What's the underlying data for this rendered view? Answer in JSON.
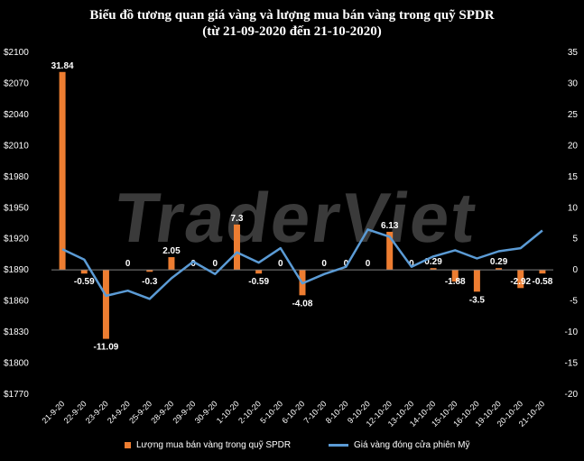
{
  "title_line1": "Biểu đồ tương quan giá vàng và lượng mua bán vàng trong quỹ SPDR",
  "title_line2": "(từ 21-09-2020 đến 21-10-2020)",
  "watermark": "TraderViet",
  "colors": {
    "bar": "#ED7D31",
    "line": "#5B9BD5",
    "axis_text": "#ffffff",
    "background": "#000000"
  },
  "chart_data": {
    "type": "bar+line",
    "categories": [
      "21-9-20",
      "22-9-20",
      "23-9-20",
      "24-9-20",
      "25-9-20",
      "28-9-20",
      "29-9-20",
      "30-9-20",
      "1-10-20",
      "2-10-20",
      "5-10-20",
      "6-10-20",
      "7-10-20",
      "8-10-20",
      "9-10-20",
      "12-10-20",
      "13-10-20",
      "14-10-20",
      "15-10-20",
      "16-10-20",
      "19-10-20",
      "20-10-20",
      "21-10-20"
    ],
    "series": [
      {
        "name": "Lượng mua bán vàng trong quỹ  SPDR",
        "type": "bar",
        "axis": "right",
        "values": [
          31.84,
          -0.59,
          -11.09,
          0,
          -0.3,
          2.05,
          0,
          0,
          7.3,
          -0.59,
          0,
          -4.08,
          0,
          0,
          0,
          6.13,
          0,
          0.29,
          -1.88,
          -3.5,
          0.29,
          -2.92,
          -0.58
        ],
        "labels": [
          "31.84",
          "-0.59",
          "-11.09",
          "0",
          "-0.3",
          "2.05",
          "0",
          "0",
          "7.3",
          "-0.59",
          "0",
          "-4.08",
          "0",
          "0",
          "0",
          "6.13",
          "0",
          "0.29",
          "-1.88",
          "-3.5",
          "0.29",
          "-2.92",
          "-0.58"
        ]
      },
      {
        "name": "Giá vàng đóng cửa phiên Mỹ",
        "type": "line",
        "axis": "left",
        "values": [
          1910,
          1900,
          1865,
          1870,
          1862,
          1882,
          1898,
          1886,
          1907,
          1897,
          1911,
          1877,
          1886,
          1893,
          1929,
          1922,
          1893,
          1903,
          1909,
          1901,
          1908,
          1911,
          1928
        ]
      }
    ],
    "y_left": {
      "min": 1770,
      "max": 2100,
      "step": 30,
      "tick_labels": [
        "$1770",
        "$1800",
        "$1830",
        "$1860",
        "$1890",
        "$1920",
        "$1950",
        "$1980",
        "$2010",
        "$2040",
        "$2070",
        "$2100"
      ]
    },
    "y_right": {
      "min": -20,
      "max": 35,
      "step": 5,
      "tick_labels": [
        "-20",
        "-15",
        "-10",
        "-5",
        "0",
        "5",
        "10",
        "15",
        "20",
        "25",
        "30",
        "35"
      ]
    },
    "legend_position": "bottom",
    "grid": false
  }
}
